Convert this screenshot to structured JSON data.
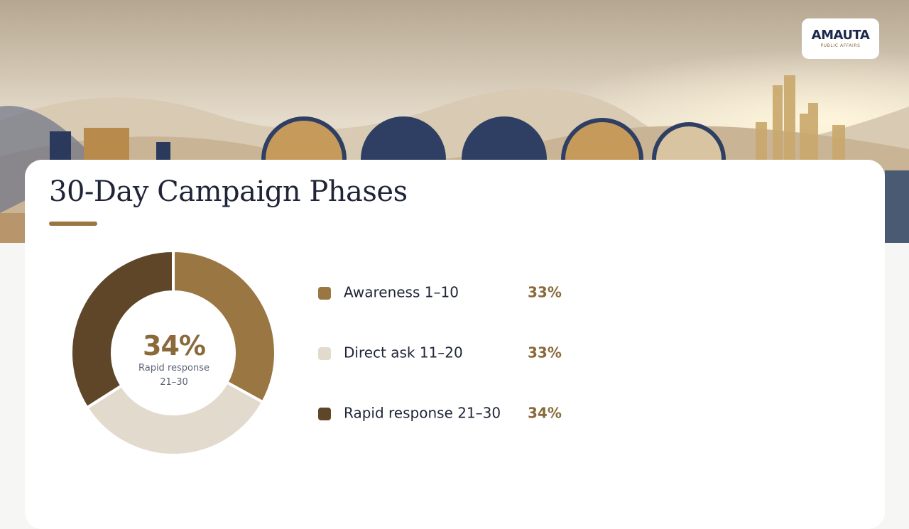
{
  "logo": {
    "name": "AMAUTA",
    "tagline": "PUBLIC AFFAIRS"
  },
  "chart_data": {
    "type": "donut",
    "title": "30-Day Campaign Phases",
    "categories": [
      "Awareness 1–10",
      "Direct ask 11–20",
      "Rapid response 21–30"
    ],
    "values": [
      33,
      33,
      34
    ],
    "value_labels": [
      "33%",
      "33%",
      "34%"
    ],
    "colors": [
      "#9a7643",
      "#e3dace",
      "#5f4629"
    ]
  }
}
